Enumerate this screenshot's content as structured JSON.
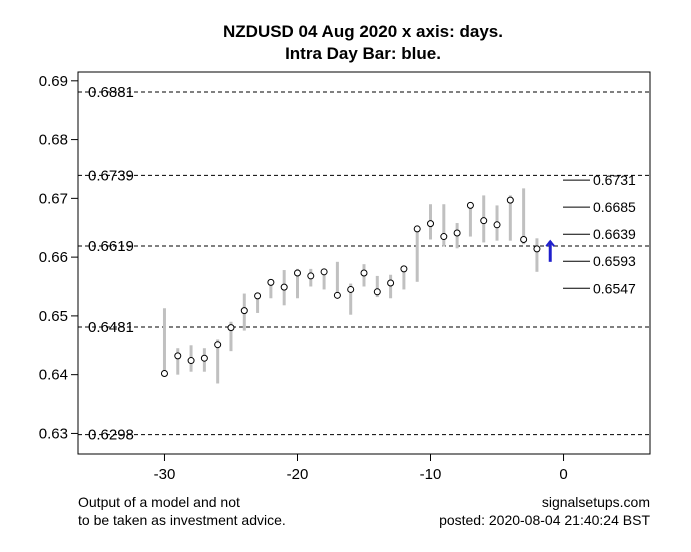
{
  "chart_data": {
    "type": "candlestick",
    "title_line1": "NZDUSD 04 Aug 2020 x axis: days.",
    "title_line2": "Intra Day Bar: blue.",
    "xlim": [
      -36.5,
      6.5
    ],
    "ylim": [
      0.6265,
      0.6915
    ],
    "x_ticks": [
      -30,
      -20,
      -10,
      0
    ],
    "x_tick_labels": [
      "-30",
      "-20",
      "-10",
      "0"
    ],
    "y_ticks": [
      0.63,
      0.64,
      0.65,
      0.66,
      0.67,
      0.68,
      0.69
    ],
    "y_tick_labels": [
      "0.63",
      "0.64",
      "0.65",
      "0.66",
      "0.67",
      "0.68",
      "0.69"
    ],
    "levels": [
      {
        "value": 0.6881,
        "label": "0.6881"
      },
      {
        "value": 0.6739,
        "label": "0.6739"
      },
      {
        "value": 0.6619,
        "label": "0.6619"
      },
      {
        "value": 0.6481,
        "label": "0.6481"
      },
      {
        "value": 0.6298,
        "label": "0.6298"
      }
    ],
    "forecast_levels": [
      {
        "value": 0.6731,
        "label": "0.6731"
      },
      {
        "value": 0.6685,
        "label": "0.6685"
      },
      {
        "value": 0.6639,
        "label": "0.6639"
      },
      {
        "value": 0.6593,
        "label": "0.6593"
      },
      {
        "value": 0.6547,
        "label": "0.6547"
      }
    ],
    "bars": [
      {
        "x": -30,
        "high": 0.6513,
        "low": 0.6402,
        "close": 0.6402
      },
      {
        "x": -29,
        "high": 0.6445,
        "low": 0.64,
        "close": 0.6432
      },
      {
        "x": -28,
        "high": 0.645,
        "low": 0.6405,
        "close": 0.6424
      },
      {
        "x": -27,
        "high": 0.6445,
        "low": 0.6405,
        "close": 0.6428
      },
      {
        "x": -26,
        "high": 0.646,
        "low": 0.6385,
        "close": 0.6451
      },
      {
        "x": -25,
        "high": 0.649,
        "low": 0.644,
        "close": 0.648
      },
      {
        "x": -24,
        "high": 0.6538,
        "low": 0.6475,
        "close": 0.6509
      },
      {
        "x": -23,
        "high": 0.654,
        "low": 0.6505,
        "close": 0.6534
      },
      {
        "x": -22,
        "high": 0.6562,
        "low": 0.653,
        "close": 0.6557
      },
      {
        "x": -21,
        "high": 0.6578,
        "low": 0.6518,
        "close": 0.6549
      },
      {
        "x": -20,
        "high": 0.658,
        "low": 0.653,
        "close": 0.6573
      },
      {
        "x": -19,
        "high": 0.658,
        "low": 0.655,
        "close": 0.6568
      },
      {
        "x": -18,
        "high": 0.658,
        "low": 0.6545,
        "close": 0.6575
      },
      {
        "x": -17,
        "high": 0.6592,
        "low": 0.653,
        "close": 0.6535
      },
      {
        "x": -16,
        "high": 0.6555,
        "low": 0.6502,
        "close": 0.6545
      },
      {
        "x": -15,
        "high": 0.6588,
        "low": 0.655,
        "close": 0.6573
      },
      {
        "x": -14,
        "high": 0.6568,
        "low": 0.6532,
        "close": 0.6541
      },
      {
        "x": -13,
        "high": 0.657,
        "low": 0.653,
        "close": 0.6556
      },
      {
        "x": -12,
        "high": 0.6585,
        "low": 0.6545,
        "close": 0.658
      },
      {
        "x": -11,
        "high": 0.6648,
        "low": 0.6558,
        "close": 0.6648
      },
      {
        "x": -10,
        "high": 0.669,
        "low": 0.663,
        "close": 0.6657
      },
      {
        "x": -9,
        "high": 0.669,
        "low": 0.6618,
        "close": 0.6635
      },
      {
        "x": -8,
        "high": 0.6658,
        "low": 0.6615,
        "close": 0.6641
      },
      {
        "x": -7,
        "high": 0.669,
        "low": 0.6635,
        "close": 0.6688
      },
      {
        "x": -6,
        "high": 0.6705,
        "low": 0.6625,
        "close": 0.6662
      },
      {
        "x": -5,
        "high": 0.6688,
        "low": 0.6628,
        "close": 0.6655
      },
      {
        "x": -4,
        "high": 0.6705,
        "low": 0.6628,
        "close": 0.6697
      },
      {
        "x": -3,
        "high": 0.6717,
        "low": 0.6622,
        "close": 0.663
      },
      {
        "x": -2,
        "high": 0.6632,
        "low": 0.6575,
        "close": 0.6614
      }
    ],
    "intraday_bar": {
      "x": -1,
      "open": 0.6592,
      "close": 0.6627,
      "color": "#1f1fcc"
    },
    "bar_color": "#c0c0c0",
    "grid": false
  },
  "footer": {
    "left_line1": "Output of a model and not",
    "left_line2": "to be taken as investment advice.",
    "right_line1": "signalsetups.com",
    "right_line2": "posted: 2020-08-04 21:40:24 BST"
  }
}
